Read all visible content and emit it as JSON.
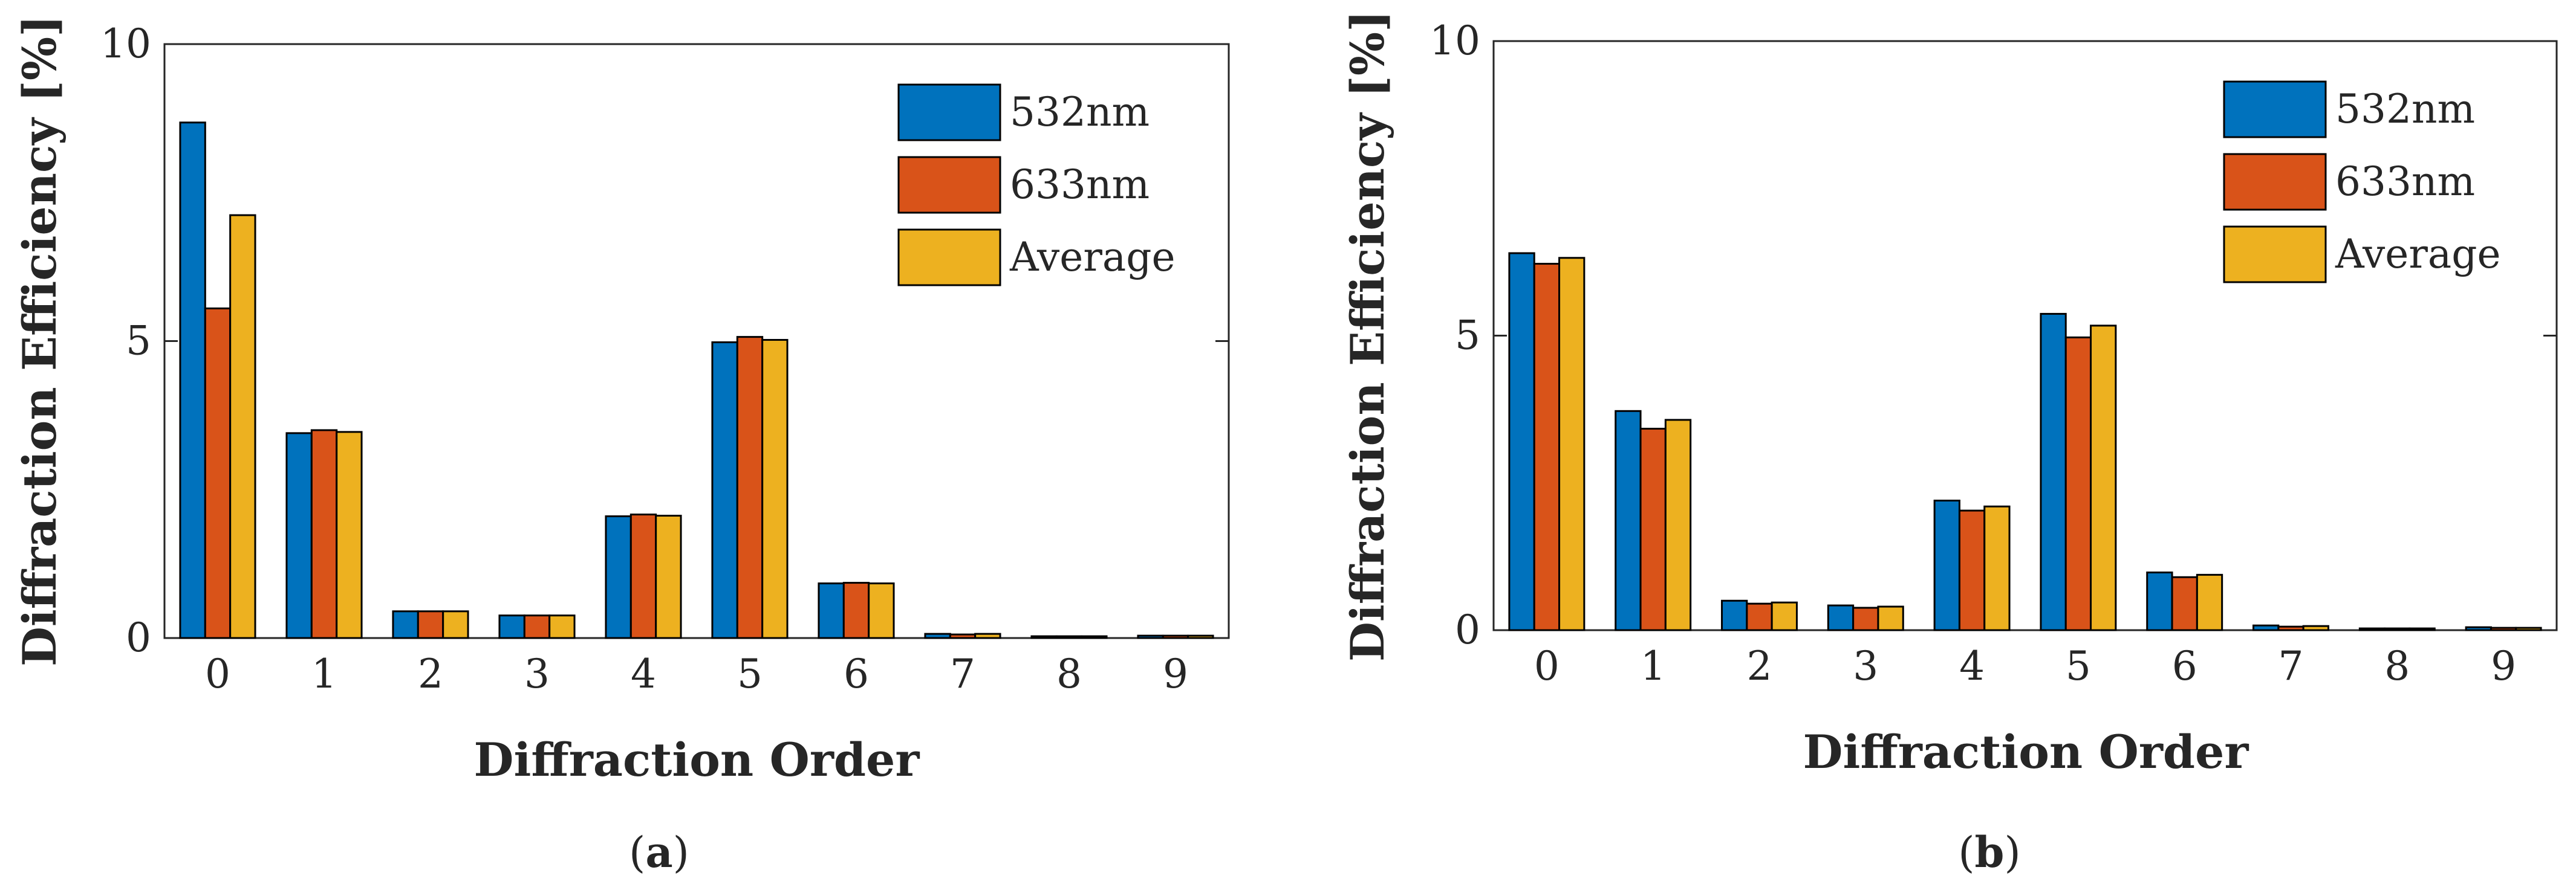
{
  "figure": {
    "panels": [
      {
        "caption_open": "(",
        "caption_letter": "a",
        "caption_close": ")"
      },
      {
        "caption_open": "(",
        "caption_letter": "b",
        "caption_close": ")"
      }
    ]
  },
  "chart_data": [
    {
      "type": "bar",
      "panel": "a",
      "title": "",
      "xlabel": "Diffraction Order",
      "ylabel": "Diffraction Efficiency [%]",
      "categories": [
        "0",
        "1",
        "2",
        "3",
        "4",
        "5",
        "6",
        "7",
        "8",
        "9"
      ],
      "ylim": [
        0,
        10
      ],
      "yticks": [
        "0",
        "5",
        "10"
      ],
      "legend_position": "top-right",
      "series": [
        {
          "name": "532nm",
          "color": "#0072BD",
          "values": [
            8.68,
            3.45,
            0.45,
            0.38,
            2.05,
            4.98,
            0.92,
            0.07,
            0.03,
            0.04
          ]
        },
        {
          "name": "633nm",
          "color": "#D95319",
          "values": [
            5.55,
            3.5,
            0.45,
            0.38,
            2.08,
            5.07,
            0.93,
            0.06,
            0.03,
            0.04
          ]
        },
        {
          "name": "Average",
          "color": "#EDB120",
          "values": [
            7.12,
            3.47,
            0.45,
            0.38,
            2.06,
            5.02,
            0.92,
            0.07,
            0.03,
            0.04
          ]
        }
      ]
    },
    {
      "type": "bar",
      "panel": "b",
      "title": "",
      "xlabel": "Diffraction Order",
      "ylabel": "Diffraction Efficiency [%]",
      "categories": [
        "0",
        "1",
        "2",
        "3",
        "4",
        "5",
        "6",
        "7",
        "8",
        "9"
      ],
      "ylim": [
        0,
        10
      ],
      "yticks": [
        "0",
        "5",
        "10"
      ],
      "legend_position": "top-right",
      "series": [
        {
          "name": "532nm",
          "color": "#0072BD",
          "values": [
            6.4,
            3.72,
            0.5,
            0.42,
            2.2,
            5.37,
            0.98,
            0.08,
            0.03,
            0.05
          ]
        },
        {
          "name": "633nm",
          "color": "#D95319",
          "values": [
            6.22,
            3.42,
            0.45,
            0.38,
            2.03,
            4.97,
            0.9,
            0.06,
            0.03,
            0.04
          ]
        },
        {
          "name": "Average",
          "color": "#EDB120",
          "values": [
            6.32,
            3.57,
            0.47,
            0.4,
            2.1,
            5.17,
            0.94,
            0.07,
            0.03,
            0.04
          ]
        }
      ]
    }
  ]
}
